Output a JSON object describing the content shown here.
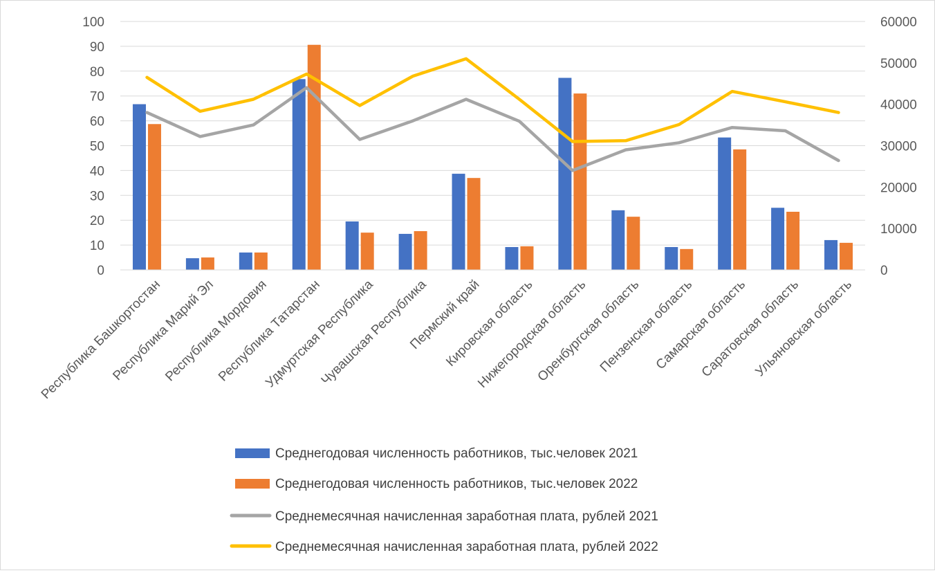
{
  "chart_data": {
    "type": "bar+line",
    "categories": [
      "Республика Башкортостан",
      "Республика Марий Эл",
      "Республика Мордовия",
      "Республика Татарстан",
      "Удмуртская Республика",
      "Чувашская Республика",
      "Пермский край",
      "Кировская область",
      "Нижегородская область",
      "Оренбургская область",
      "Пензенская область",
      "Самарская область",
      "Саратовская область",
      "Ульяновская область"
    ],
    "bar_series": [
      {
        "name": "Среднегодовая  численность работников, тыс.человек 2021",
        "color": "#4472C4",
        "values": [
          66.7,
          4.7,
          7.0,
          76.8,
          19.5,
          14.5,
          38.7,
          9.2,
          77.3,
          24.0,
          9.2,
          53.3,
          25.0,
          12.0
        ]
      },
      {
        "name": "Среднегодовая  численность работников, тыс.человек 2022",
        "color": "#ED7D31",
        "values": [
          58.7,
          5.0,
          7.0,
          90.6,
          15.0,
          15.6,
          37.0,
          9.5,
          71.0,
          21.4,
          8.4,
          48.5,
          23.4,
          10.9
        ]
      }
    ],
    "line_series": [
      {
        "name": "Среднемесячная начисленная заработная плата, рублей 2021",
        "color": "#A5A5A5",
        "values": [
          38000,
          32200,
          35000,
          44000,
          31500,
          36000,
          41200,
          35900,
          24000,
          29000,
          30700,
          34400,
          33600,
          26400
        ]
      },
      {
        "name": "Среднемесячная начисленная заработная плата, рублей 2022",
        "color": "#FFC000",
        "values": [
          46500,
          38300,
          41200,
          47300,
          39700,
          46800,
          51000,
          41200,
          31000,
          31200,
          35100,
          43100,
          40600,
          38000
        ]
      }
    ],
    "y_left": {
      "min": 0,
      "max": 100,
      "ticks": [
        "0",
        "10",
        "20",
        "30",
        "40",
        "50",
        "60",
        "70",
        "80",
        "90",
        "100"
      ]
    },
    "y_right": {
      "min": 0,
      "max": 60000,
      "ticks": [
        "0",
        "10000",
        "20000",
        "30000",
        "40000",
        "50000",
        "60000"
      ]
    },
    "title": "",
    "grid": true,
    "legend": "bottom"
  }
}
